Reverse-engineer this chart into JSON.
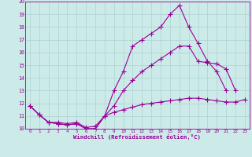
{
  "xlabel": "Windchill (Refroidissement éolien,°C)",
  "line_color": "#990099",
  "bg_color": "#cceae8",
  "grid_color": "#aad4d0",
  "xlim": [
    -0.5,
    23.5
  ],
  "ylim": [
    10,
    20
  ],
  "xticks": [
    0,
    1,
    2,
    3,
    4,
    5,
    6,
    7,
    8,
    9,
    10,
    11,
    12,
    13,
    14,
    15,
    16,
    17,
    18,
    19,
    20,
    21,
    22,
    23
  ],
  "yticks": [
    10,
    11,
    12,
    13,
    14,
    15,
    16,
    17,
    18,
    19,
    20
  ],
  "lines": [
    {
      "x": [
        0,
        1,
        2,
        3,
        4,
        5,
        6,
        7,
        8,
        9,
        10,
        11,
        12,
        13,
        14,
        15,
        16,
        17,
        18,
        19,
        20,
        21
      ],
      "y": [
        11.8,
        11.1,
        10.5,
        10.4,
        10.3,
        10.4,
        10.0,
        10.0,
        11.0,
        13.0,
        14.5,
        16.5,
        17.0,
        17.5,
        18.0,
        19.0,
        19.7,
        18.0,
        16.7,
        15.3,
        14.5,
        13.0
      ]
    },
    {
      "x": [
        0,
        1,
        2,
        3,
        4,
        5,
        6,
        7,
        8,
        9,
        10,
        11,
        12,
        13,
        14,
        15,
        16,
        17,
        18,
        19,
        20,
        21,
        22
      ],
      "y": [
        11.8,
        11.1,
        10.5,
        10.4,
        10.3,
        10.4,
        10.0,
        10.0,
        11.0,
        11.8,
        13.0,
        13.8,
        14.5,
        15.0,
        15.5,
        16.0,
        16.5,
        16.5,
        15.3,
        15.2,
        15.1,
        14.7,
        13.0
      ]
    },
    {
      "x": [
        0,
        1,
        2,
        3,
        4,
        5,
        6,
        7,
        8,
        9,
        10,
        11,
        12,
        13,
        14,
        15,
        16,
        17,
        18,
        19,
        20,
        21,
        22,
        23
      ],
      "y": [
        11.8,
        11.1,
        10.5,
        10.5,
        10.4,
        10.5,
        10.1,
        10.2,
        11.0,
        11.3,
        11.5,
        11.7,
        11.9,
        12.0,
        12.1,
        12.2,
        12.3,
        12.4,
        12.4,
        12.3,
        12.2,
        12.1,
        12.1,
        12.3
      ]
    }
  ]
}
